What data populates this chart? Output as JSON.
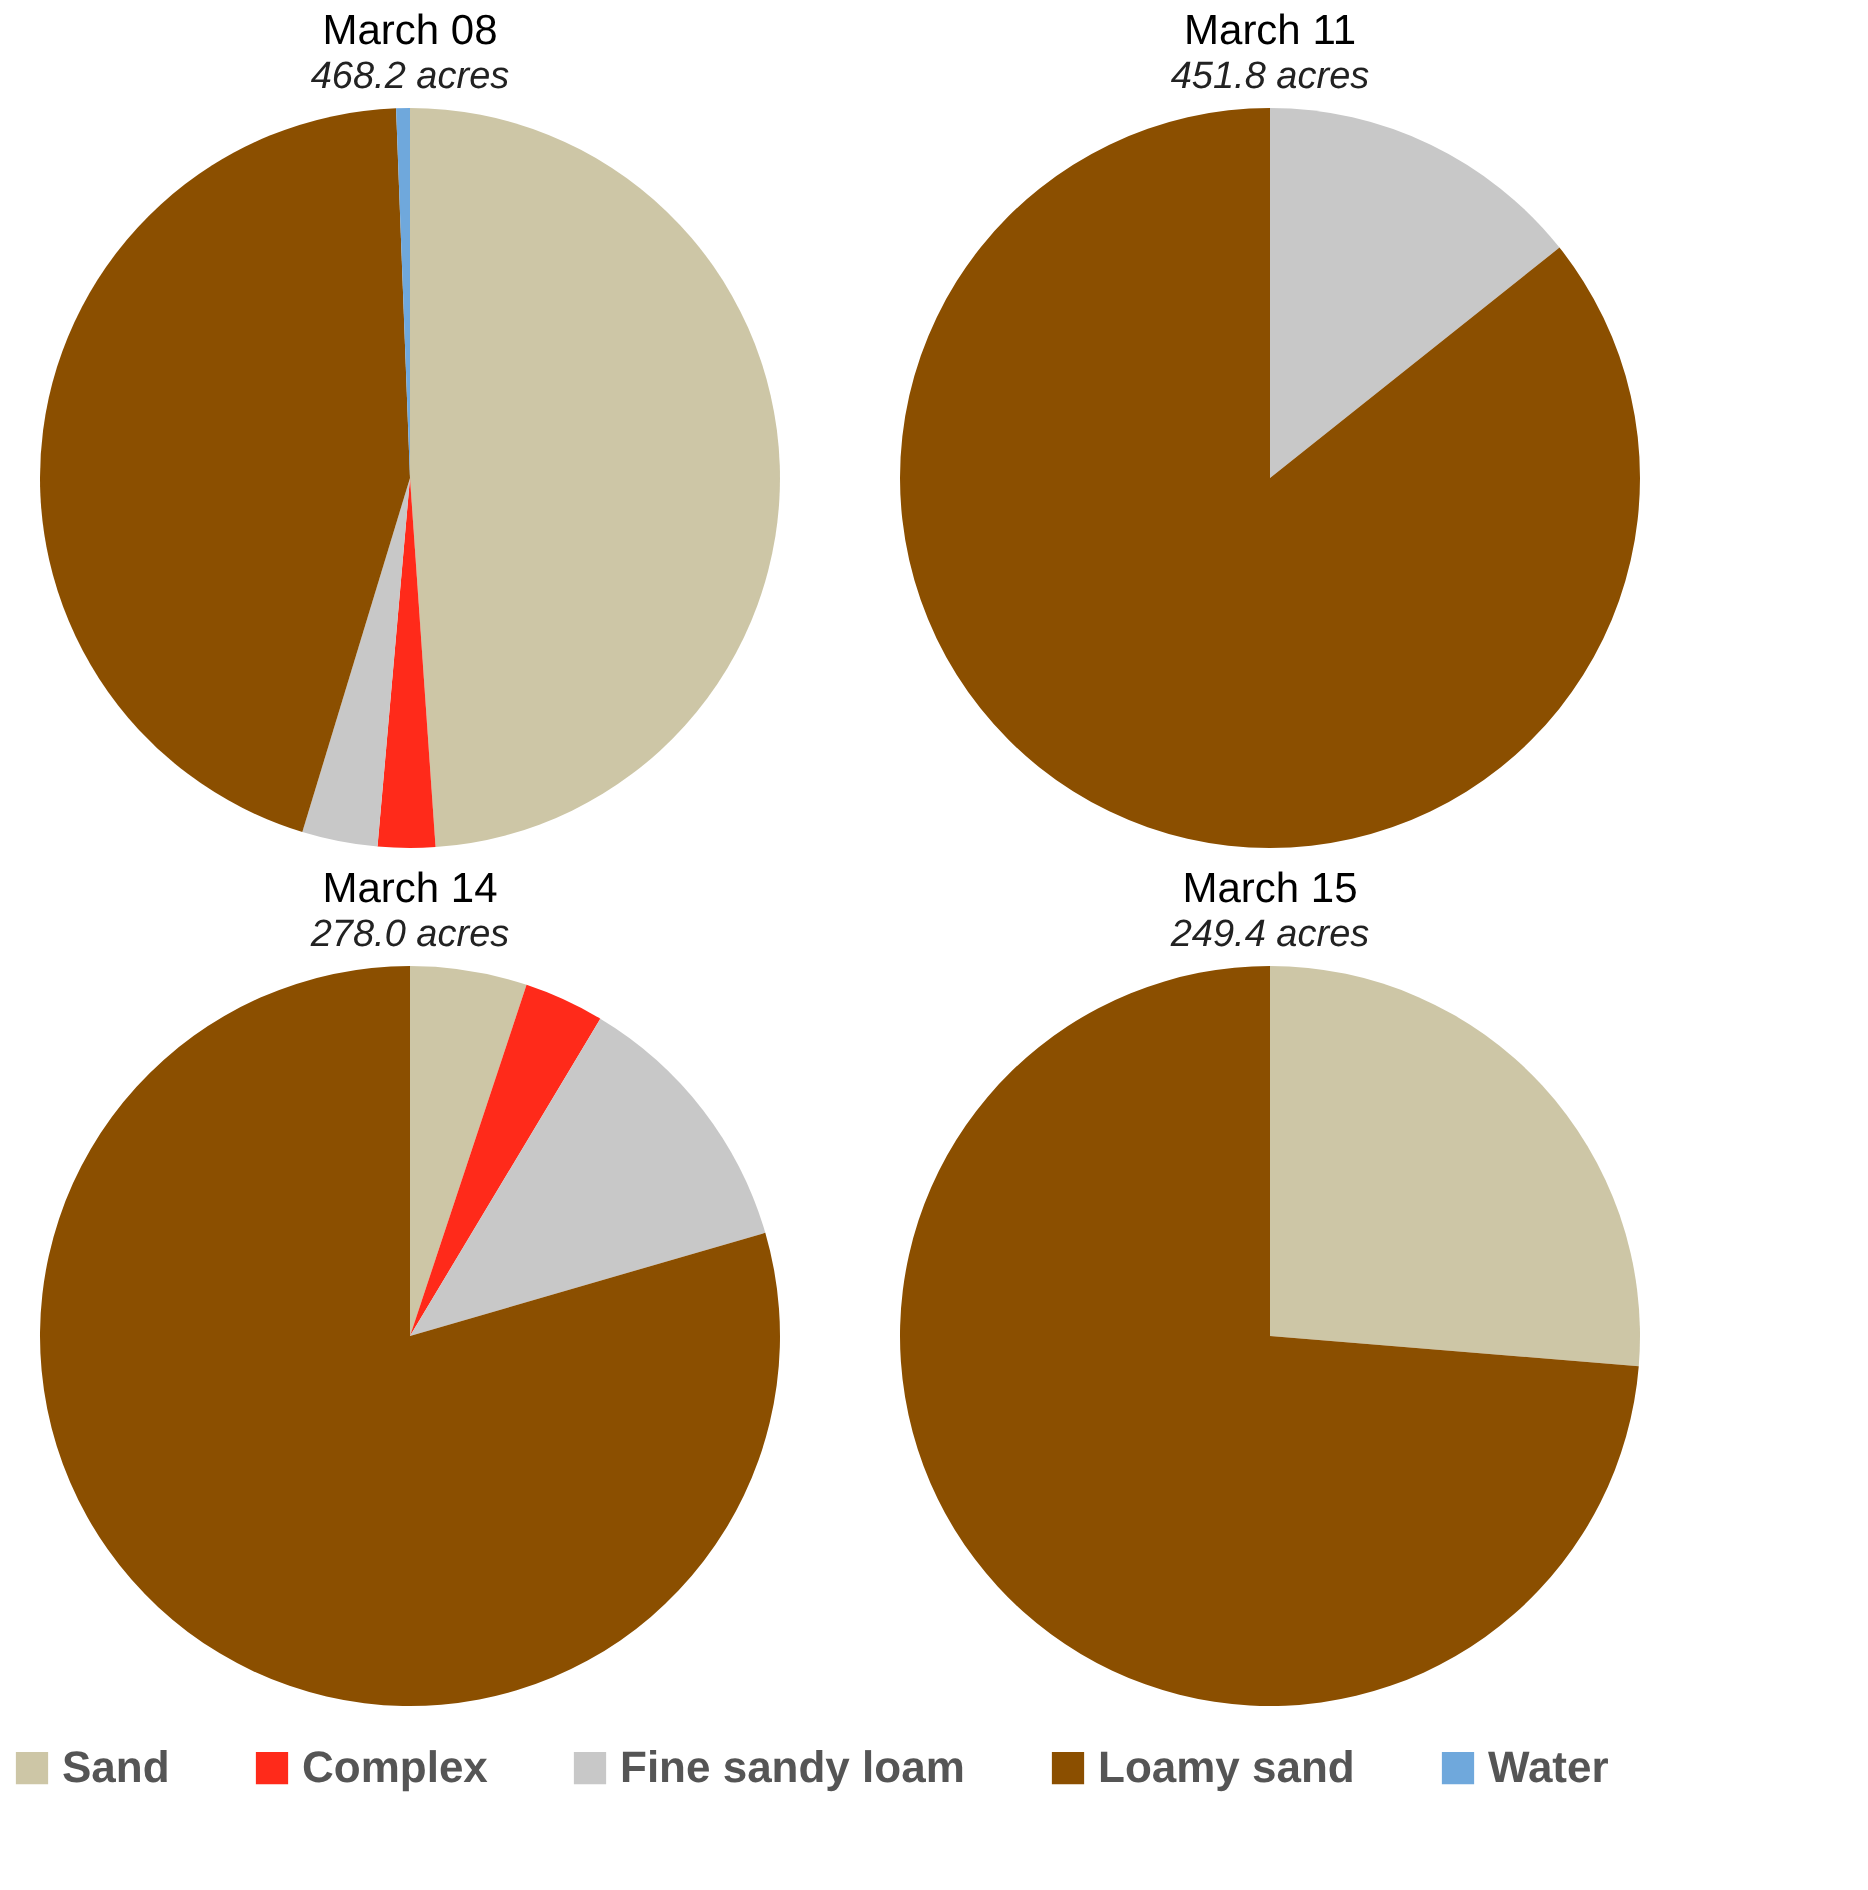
{
  "chart_data": [
    {
      "type": "pie",
      "title": "March 08",
      "subtitle": "468.2 acres",
      "categories": [
        "Sand",
        "Complex",
        "Fine sandy loam",
        "Loamy sand",
        "Water"
      ],
      "values": [
        48.9,
        2.5,
        3.3,
        44.7,
        0.6
      ],
      "colors": [
        "#cdc6a6",
        "#ff2a1a",
        "#c8c8c8",
        "#8b4f00",
        "#6fa8dc"
      ],
      "legend": "bottom"
    },
    {
      "type": "pie",
      "title": "March 11",
      "subtitle": "451.8 acres",
      "categories": [
        null,
        null
      ],
      "values": [
        14.3,
        85.7
      ],
      "colors": [
        "#c8c8c8",
        "#8b4f00"
      ]
    },
    {
      "type": "pie",
      "title": "March 14",
      "subtitle": "278.0 acres",
      "categories": [
        null,
        null,
        null,
        null
      ],
      "values": [
        5.1,
        3.5,
        11.9,
        79.5
      ],
      "colors": [
        "#cdc6a6",
        "#ff2a1a",
        "#c8c8c8",
        "#8b4f00"
      ]
    },
    {
      "type": "pie",
      "title": "March 15",
      "subtitle": "249.4 acres",
      "categories": [
        null,
        null
      ],
      "values": [
        26.3,
        73.7
      ],
      "colors": [
        "#cdc6a6",
        "#8b4f00"
      ]
    }
  ]
}
